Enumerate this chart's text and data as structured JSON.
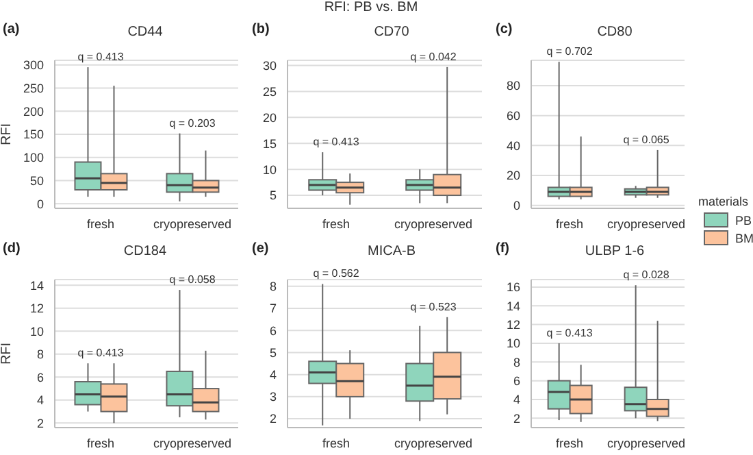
{
  "chart_data": [
    {
      "type": "box",
      "title": "CD44",
      "ylabel": "RFI",
      "categories": [
        "fresh",
        "cryopreserved"
      ],
      "ylim": [
        -10,
        310
      ],
      "yticks": [
        0,
        50,
        100,
        150,
        200,
        250,
        300
      ],
      "grid": "y",
      "legend": false,
      "annotations": [
        "(a)",
        "q = 0.413",
        "q = 0.203"
      ],
      "series": [
        {
          "color": "#8fd5bc",
          "boxes": [
            {
              "low": 15,
              "q1": 30,
              "median": 55,
              "q3": 90,
              "high": 295
            },
            {
              "low": 5,
              "q1": 25,
              "median": 40,
              "q3": 65,
              "high": 152
            }
          ]
        },
        {
          "color": "#fcc39d",
          "boxes": [
            {
              "low": 15,
              "q1": 30,
              "median": 45,
              "q3": 65,
              "high": 255
            },
            {
              "low": 15,
              "q1": 25,
              "median": 35,
              "q3": 50,
              "high": 115
            }
          ]
        }
      ]
    },
    {
      "type": "box",
      "title": "CD70",
      "categories": [
        "fresh",
        "cryopreserved"
      ],
      "ylim": [
        2.5,
        31
      ],
      "yticks": [
        5,
        10,
        15,
        20,
        25,
        30
      ],
      "grid": "y",
      "legend": false,
      "annotations": [
        "(b)",
        "q = 0.413",
        "q = 0.042",
        "RFI: PB vs. BM"
      ],
      "series": [
        {
          "color": "#8fd5bc",
          "boxes": [
            {
              "low": 5,
              "q1": 6,
              "median": 7,
              "q3": 8,
              "high": 13.3
            },
            {
              "low": 3.5,
              "q1": 6,
              "median": 7,
              "q3": 8,
              "high": 10
            }
          ]
        },
        {
          "color": "#fcc39d",
          "boxes": [
            {
              "low": 3.2,
              "q1": 5.5,
              "median": 6.5,
              "q3": 7.5,
              "high": 9.2
            },
            {
              "low": 3.5,
              "q1": 5,
              "median": 6.5,
              "q3": 9,
              "high": 29.7
            }
          ]
        }
      ]
    },
    {
      "type": "box",
      "title": "CD80",
      "categories": [
        "fresh",
        "cryopreserved"
      ],
      "ylim": [
        -2,
        97
      ],
      "yticks": [
        0,
        20,
        40,
        60,
        80
      ],
      "grid": "y",
      "legend": "right",
      "legend_title": "materials",
      "annotations": [
        "(c)",
        "q = 0.702",
        "q = 0.065"
      ],
      "series": [
        {
          "name": "PB",
          "color": "#8fd5bc",
          "boxes": [
            {
              "low": 4,
              "q1": 6,
              "median": 9,
              "q3": 12,
              "high": 96
            },
            {
              "low": 5,
              "q1": 7,
              "median": 9,
              "q3": 11,
              "high": 13
            }
          ]
        },
        {
          "name": "BM",
          "color": "#fcc39d",
          "boxes": [
            {
              "low": 4,
              "q1": 6,
              "median": 9,
              "q3": 12,
              "high": 46
            },
            {
              "low": 5,
              "q1": 7,
              "median": 9,
              "q3": 12,
              "high": 37
            }
          ]
        }
      ]
    },
    {
      "type": "box",
      "title": "CD184",
      "ylabel": "RFI",
      "categories": [
        "fresh",
        "cryopreserved"
      ],
      "ylim": [
        1.6,
        14.5
      ],
      "yticks": [
        2,
        4,
        6,
        8,
        10,
        12,
        14
      ],
      "grid": "y",
      "legend": false,
      "annotations": [
        "(d)",
        "q = 0.413",
        "q = 0.058"
      ],
      "series": [
        {
          "color": "#8fd5bc",
          "boxes": [
            {
              "low": 3,
              "q1": 3.6,
              "median": 4.5,
              "q3": 5.6,
              "high": 7.2
            },
            {
              "low": 2.5,
              "q1": 3.5,
              "median": 4.5,
              "q3": 6.5,
              "high": 13.6
            }
          ]
        },
        {
          "color": "#fcc39d",
          "boxes": [
            {
              "low": 2,
              "q1": 3,
              "median": 4.3,
              "q3": 5.4,
              "high": 7.2
            },
            {
              "low": 2.3,
              "q1": 3,
              "median": 3.8,
              "q3": 5,
              "high": 8.3
            }
          ]
        }
      ]
    },
    {
      "type": "box",
      "title": "MICA-B",
      "categories": [
        "fresh",
        "cryopreserved"
      ],
      "ylim": [
        1.6,
        8.3
      ],
      "yticks": [
        2,
        3,
        4,
        5,
        6,
        7,
        8
      ],
      "grid": "y",
      "legend": false,
      "annotations": [
        "(e)",
        "q = 0.562",
        "q = 0.523"
      ],
      "series": [
        {
          "color": "#8fd5bc",
          "boxes": [
            {
              "low": 1.7,
              "q1": 3.6,
              "median": 4.1,
              "q3": 4.6,
              "high": 8.1
            },
            {
              "low": 1.9,
              "q1": 2.8,
              "median": 3.5,
              "q3": 4.5,
              "high": 6.2
            }
          ]
        },
        {
          "color": "#fcc39d",
          "boxes": [
            {
              "low": 2,
              "q1": 3,
              "median": 3.7,
              "q3": 4.5,
              "high": 5.1
            },
            {
              "low": 2.2,
              "q1": 2.9,
              "median": 3.9,
              "q3": 5,
              "high": 6.6
            }
          ]
        }
      ]
    },
    {
      "type": "box",
      "title": "ULBP 1-6",
      "categories": [
        "fresh",
        "cryopreserved"
      ],
      "ylim": [
        1,
        16.8
      ],
      "yticks": [
        2,
        4,
        6,
        8,
        10,
        12,
        14,
        16
      ],
      "grid": "y",
      "legend": false,
      "annotations": [
        "(f)",
        "q = 0.413",
        "q = 0.028"
      ],
      "series": [
        {
          "color": "#8fd5bc",
          "boxes": [
            {
              "low": 1.8,
              "q1": 3,
              "median": 4.8,
              "q3": 6,
              "high": 10
            },
            {
              "low": 2,
              "q1": 2.8,
              "median": 3.5,
              "q3": 5.3,
              "high": 16.2
            }
          ]
        },
        {
          "color": "#fcc39d",
          "boxes": [
            {
              "low": 1.6,
              "q1": 2.5,
              "median": 4,
              "q3": 5.5,
              "high": 7.7
            },
            {
              "low": 1.7,
              "q1": 2.2,
              "median": 3,
              "q3": 4,
              "high": 12.4
            }
          ]
        }
      ]
    }
  ]
}
